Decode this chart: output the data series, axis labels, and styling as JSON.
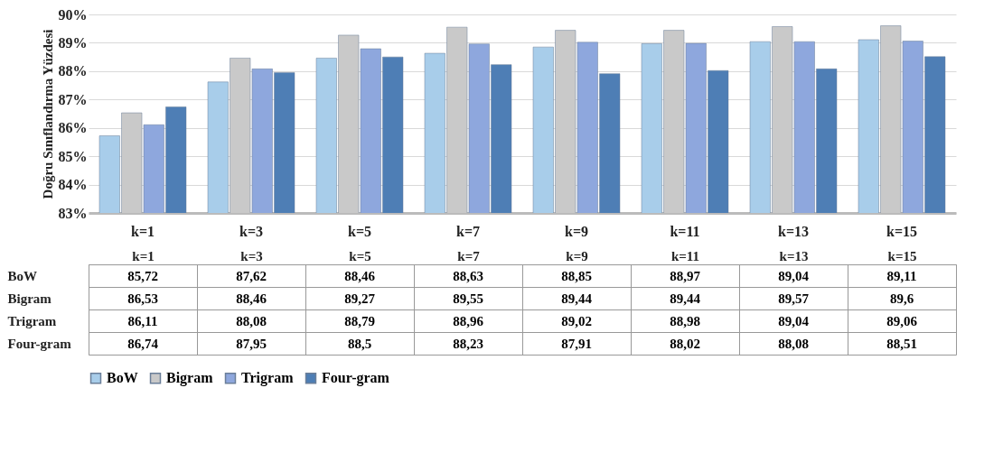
{
  "chart_data": {
    "type": "bar",
    "ylabel": "Doğru Sınıflandırma Yüzdesi",
    "categories": [
      "k=1",
      "k=3",
      "k=5",
      "k=7",
      "k=9",
      "k=11",
      "k=13",
      "k=15"
    ],
    "ylim": [
      83,
      90
    ],
    "yticks": [
      {
        "value": 83,
        "label": "83%"
      },
      {
        "value": 84,
        "label": "84%"
      },
      {
        "value": 85,
        "label": "85%"
      },
      {
        "value": 86,
        "label": "86%"
      },
      {
        "value": 87,
        "label": "87%"
      },
      {
        "value": 88,
        "label": "88%"
      },
      {
        "value": 89,
        "label": "89%"
      },
      {
        "value": 90,
        "label": "90%"
      }
    ],
    "grid": "y",
    "legend": "bottom",
    "series": [
      {
        "name": "BoW",
        "color": "#a8cdea",
        "values": [
          85.72,
          87.62,
          88.46,
          88.63,
          88.85,
          88.97,
          89.04,
          89.11
        ],
        "value_labels": [
          "85,72",
          "87,62",
          "88,46",
          "88,63",
          "88,85",
          "88,97",
          "89,04",
          "89,11"
        ]
      },
      {
        "name": "Bigram",
        "color": "#c9c9c9",
        "values": [
          86.53,
          88.46,
          89.27,
          89.55,
          89.44,
          89.44,
          89.57,
          89.6
        ],
        "value_labels": [
          "86,53",
          "88,46",
          "89,27",
          "89,55",
          "89,44",
          "89,44",
          "89,57",
          "89,6"
        ]
      },
      {
        "name": "Trigram",
        "color": "#8ea7dd",
        "values": [
          86.11,
          88.08,
          88.79,
          88.96,
          89.02,
          88.98,
          89.04,
          89.06
        ],
        "value_labels": [
          "86,11",
          "88,08",
          "88,79",
          "88,96",
          "89,02",
          "88,98",
          "89,04",
          "89,06"
        ]
      },
      {
        "name": "Four-gram",
        "color": "#4e7eb5",
        "values": [
          86.74,
          87.95,
          88.5,
          88.23,
          87.91,
          88.02,
          88.08,
          88.51
        ],
        "value_labels": [
          "86,74",
          "87,95",
          "88,5",
          "88,23",
          "87,91",
          "88,02",
          "88,08",
          "88,51"
        ]
      }
    ]
  }
}
